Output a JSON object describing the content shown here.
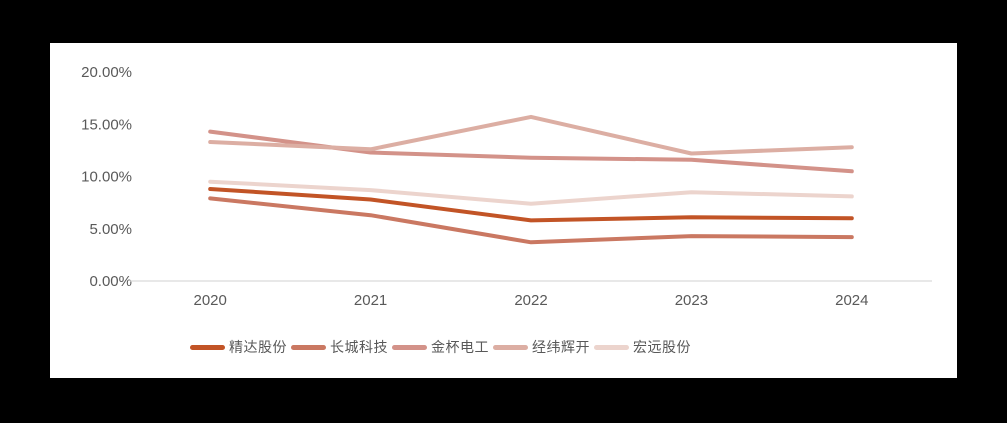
{
  "chart_data": {
    "type": "line",
    "title": "",
    "x_labels": [
      "2020",
      "2021",
      "2022",
      "2023",
      "2024"
    ],
    "series": [
      {
        "name": "精达股份",
        "color": "#C25426",
        "values": [
          8.8,
          7.8,
          5.8,
          6.1,
          6.0
        ]
      },
      {
        "name": "长城科技",
        "color": "#CA7862",
        "values": [
          7.9,
          6.3,
          3.7,
          4.3,
          4.2
        ]
      },
      {
        "name": "金杯电工",
        "color": "#D39289",
        "values": [
          14.3,
          12.3,
          11.8,
          11.6,
          10.5
        ]
      },
      {
        "name": "经纬辉开",
        "color": "#DCAEA3",
        "values": [
          13.3,
          12.6,
          15.7,
          12.2,
          12.8
        ]
      },
      {
        "name": "宏远股份",
        "color": "#ECD4CD",
        "values": [
          9.5,
          8.7,
          7.4,
          8.5,
          8.1
        ]
      }
    ],
    "y_ticks": [
      {
        "value": 20,
        "label": "20.00%"
      },
      {
        "value": 15,
        "label": "15.00%"
      },
      {
        "value": 10,
        "label": "10.00%"
      },
      {
        "value": 5,
        "label": "5.00%"
      },
      {
        "value": 0,
        "label": "0.00%"
      }
    ],
    "ylim": [
      0,
      20
    ],
    "y_unit": "%",
    "grid": false,
    "legend_position": "bottom",
    "axis_line_color": "#D9D9D9",
    "label_color": "#595959",
    "background_color": "#FFFFFF",
    "page_background": "#000000",
    "line_width": 4
  }
}
